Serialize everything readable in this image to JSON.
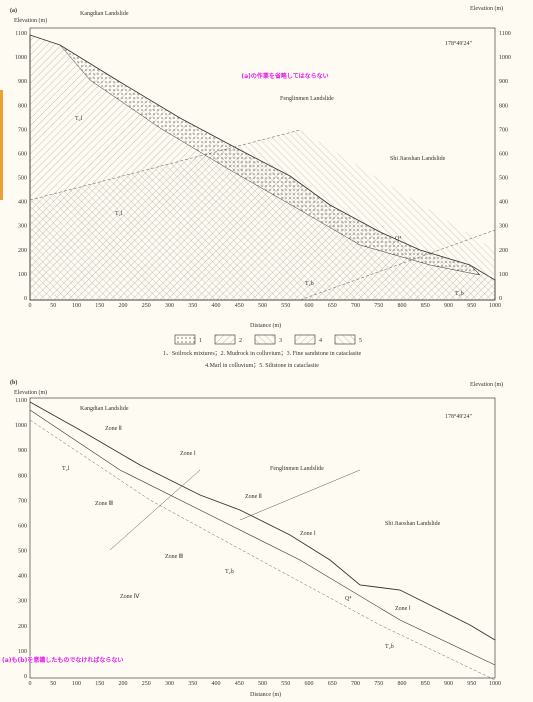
{
  "panel_a": {
    "label": "(a)",
    "y_label": "Elevation (m)",
    "y2_label": "Elevation (m)",
    "x_label": "Distance (m)",
    "y_ticks": [
      "0",
      "100",
      "200",
      "300",
      "400",
      "500",
      "600",
      "700",
      "800",
      "900",
      "1000",
      "1100"
    ],
    "x_ticks": [
      "0",
      "50",
      "100",
      "150",
      "200",
      "250",
      "300",
      "350",
      "400",
      "450",
      "500",
      "550",
      "600",
      "650",
      "700",
      "750",
      "800",
      "850",
      "900",
      "950",
      "1000"
    ],
    "direction": "178°49'24\"",
    "landslides": [
      "Kangdian Landslide",
      "Fenglinmen Landslide",
      "Shi Jiaoshan Landslide"
    ],
    "units": [
      "T₂l",
      "T₂l",
      "T₂b",
      "T₂b",
      "Q⁴"
    ],
    "legend_numbers": [
      "1",
      "2",
      "3",
      "4",
      "5"
    ],
    "legend_lines": [
      "1、Soilrock mixtures；2. Mudrock in colluvium；3. Fine sandstone in cataclasite",
      "4.Marl in colluvium；5. Siltstone in cataclasite"
    ],
    "overlay": "(a)の作業を省略してはならない"
  },
  "panel_b": {
    "label": "(b)",
    "y_label": "Elevation (m)",
    "y2_label": "Elevation (m)",
    "x_label": "Distance (m)",
    "direction": "178°49'24\"",
    "landslides": [
      "Kangdian Landslide",
      "Fenglinmen Landslide",
      "Shi Jiaoshan Landslide"
    ],
    "zones": [
      "Zone Ⅱ",
      "Zone Ⅰ",
      "Zone Ⅲ",
      "Zone Ⅱ",
      "Zone Ⅲ",
      "Zone Ⅰ",
      "Zone Ⅳ",
      "Zone Ⅰ"
    ],
    "units": [
      "T₂l",
      "T₂b",
      "T₂b",
      "Q⁴"
    ],
    "overlay": "(a)も(b)を意識したものでなければならない"
  }
}
